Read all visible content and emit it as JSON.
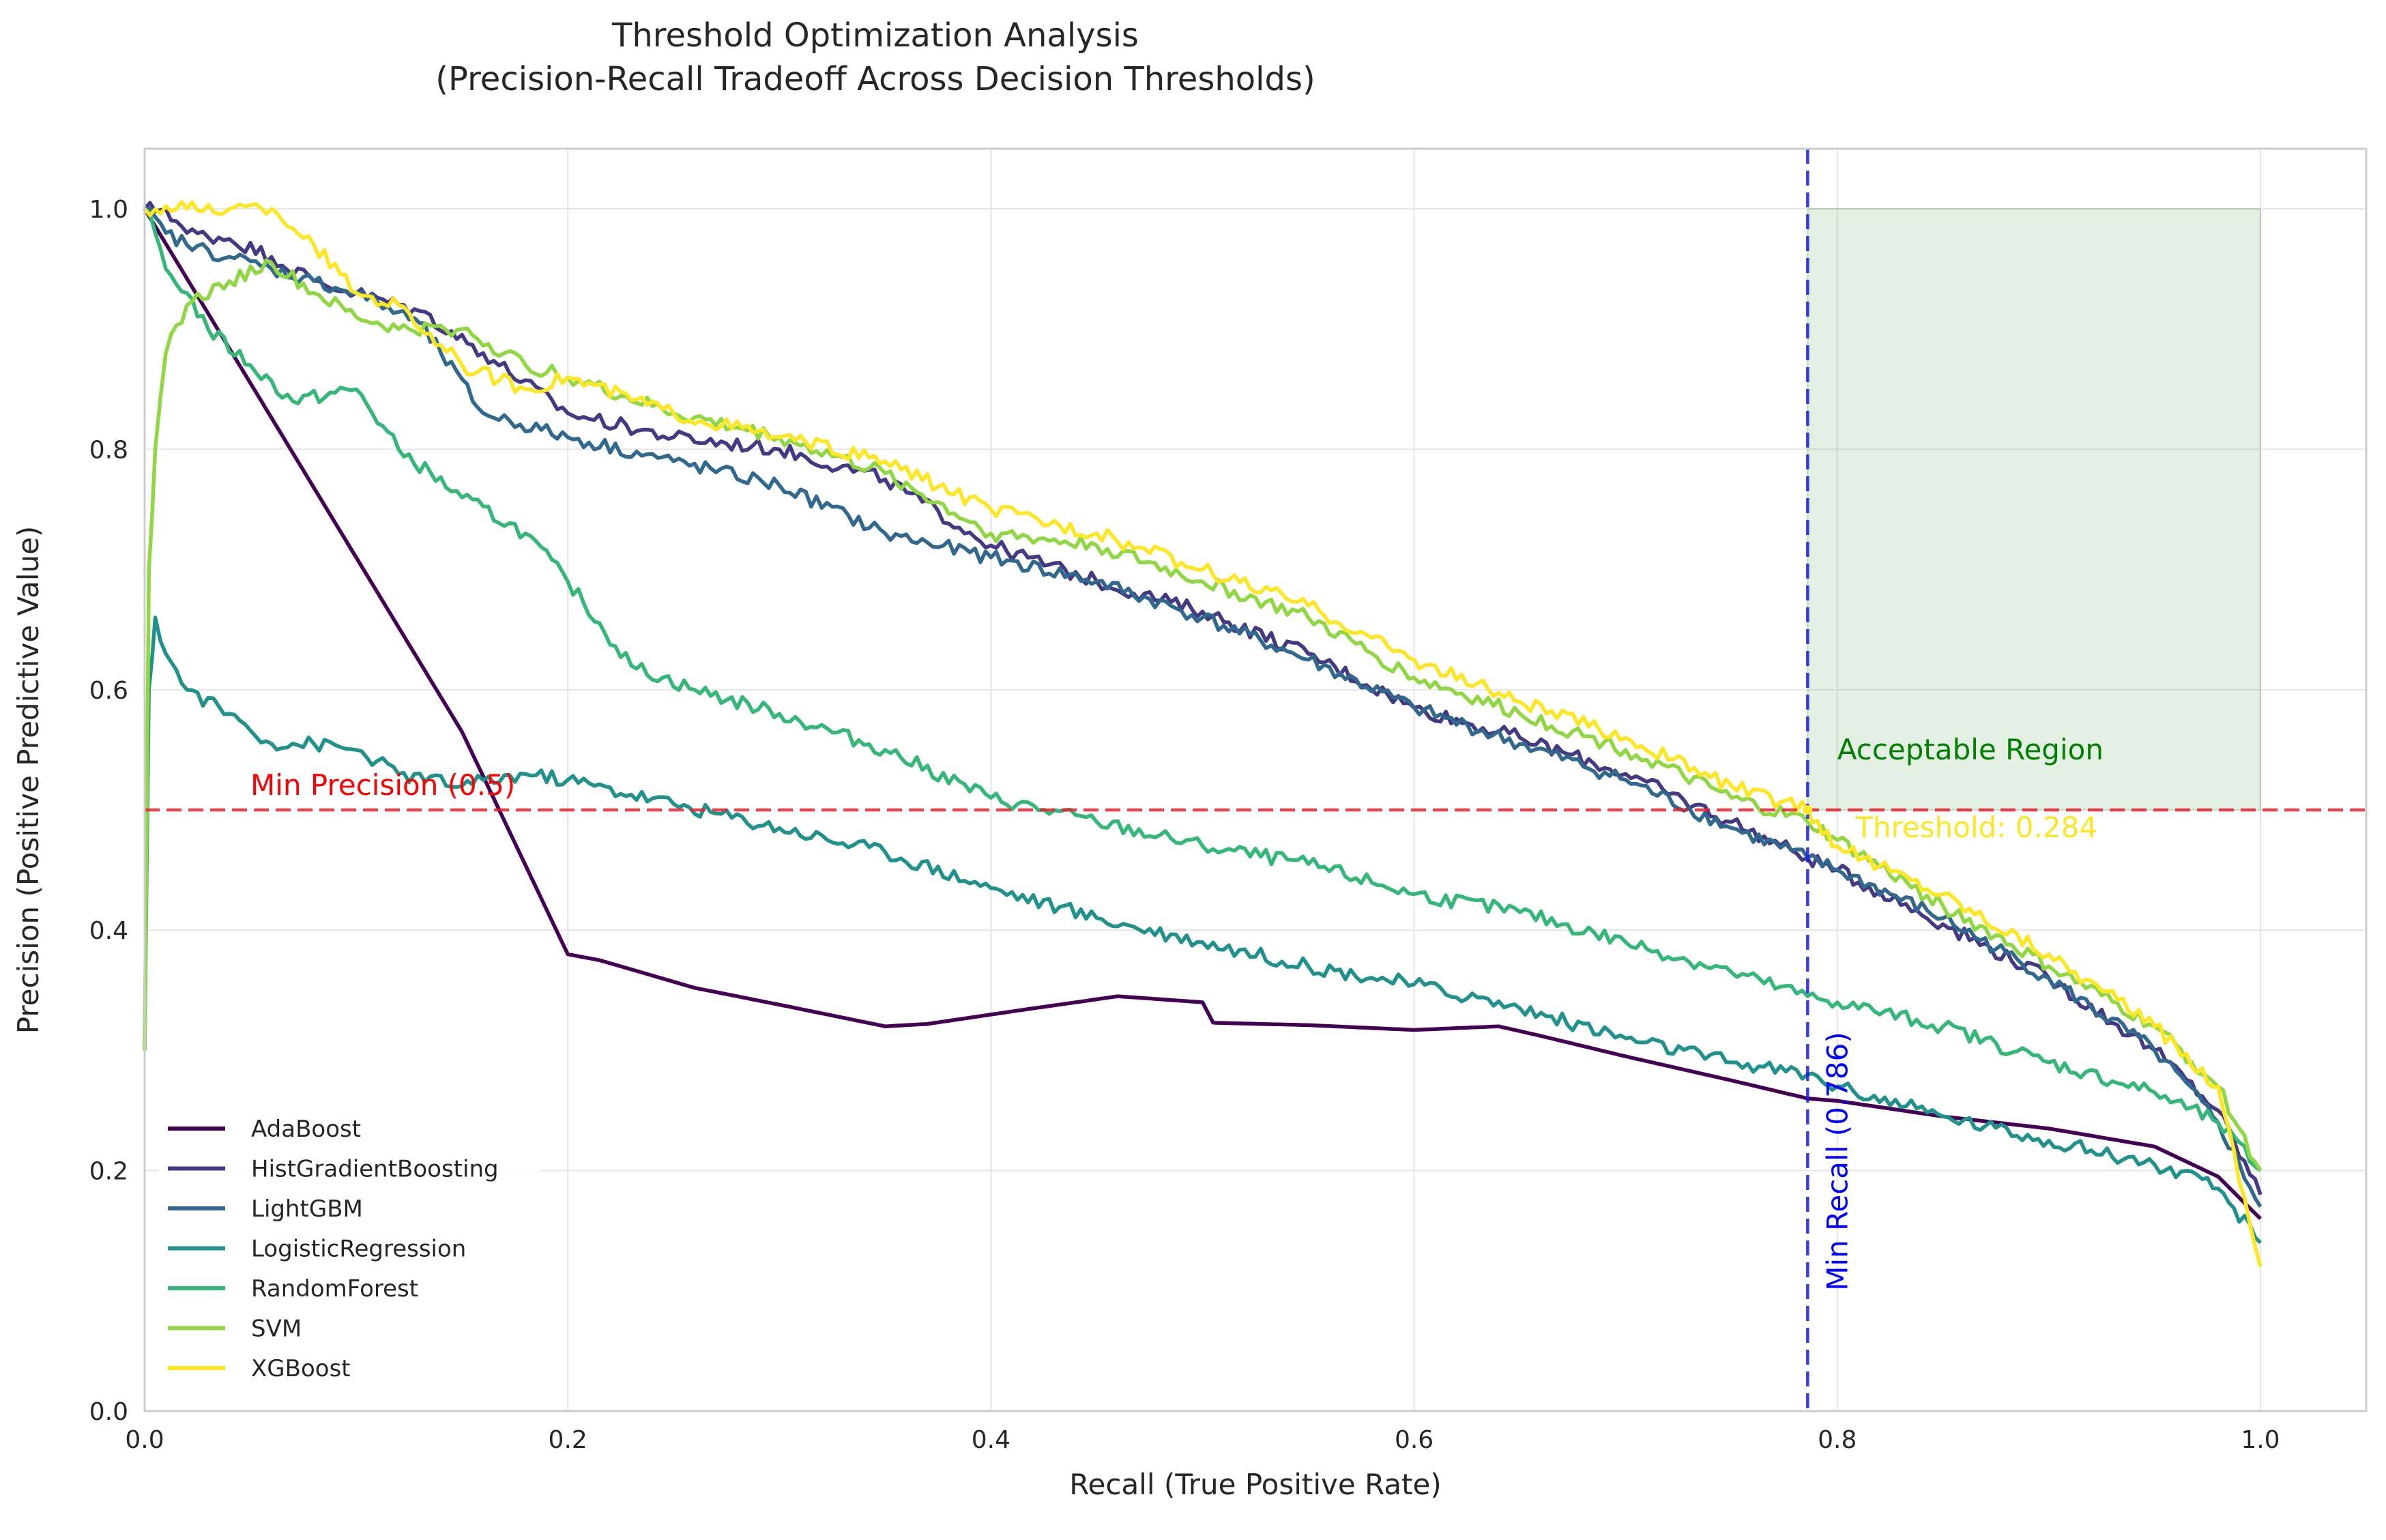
{
  "chart_data": {
    "type": "line",
    "title": "Threshold Optimization Analysis",
    "subtitle": "(Precision-Recall Tradeoff Across Decision Thresholds)",
    "xlabel": "Recall (True Positive Rate)",
    "ylabel": "Precision (Positive Predictive Value)",
    "xlim": [
      0.0,
      1.05
    ],
    "ylim": [
      0.0,
      1.05
    ],
    "xticks": [
      "0.0",
      "0.2",
      "0.4",
      "0.6",
      "0.8",
      "1.0"
    ],
    "xtick_values": [
      0.0,
      0.2,
      0.4,
      0.6,
      0.8,
      1.0
    ],
    "yticks": [
      "0.0",
      "0.2",
      "0.4",
      "0.6",
      "0.8",
      "1.0"
    ],
    "ytick_values": [
      0.0,
      0.2,
      0.4,
      0.6,
      0.8,
      1.0
    ],
    "grid": true,
    "legend_position": "lower-left",
    "colors": {
      "AdaBoost": "#440154",
      "HistGradientBoosting": "#443983",
      "LightGBM": "#31688e",
      "LogisticRegression": "#21918c",
      "RandomForest": "#35b779",
      "SVM": "#90d743",
      "XGBoost": "#fde725",
      "min_precision": "#e8202a",
      "min_recall": "#1a1ae6",
      "acceptable_region": "#2e8b2e"
    },
    "series": [
      {
        "name": "AdaBoost",
        "x": [
          0.0,
          0.05,
          0.1,
          0.15,
          0.2,
          0.215,
          0.26,
          0.3,
          0.35,
          0.37,
          0.42,
          0.46,
          0.5,
          0.505,
          0.55,
          0.6,
          0.64,
          0.66,
          0.7,
          0.75,
          0.786,
          0.8,
          0.85,
          0.9,
          0.95,
          0.98,
          1.0
        ],
        "y": [
          1.0,
          0.855,
          0.71,
          0.565,
          0.38,
          0.375,
          0.352,
          0.338,
          0.32,
          0.322,
          0.335,
          0.345,
          0.34,
          0.323,
          0.321,
          0.317,
          0.32,
          0.312,
          0.295,
          0.275,
          0.26,
          0.258,
          0.245,
          0.235,
          0.22,
          0.195,
          0.16
        ]
      },
      {
        "name": "HistGradientBoosting",
        "x": [
          0.0,
          0.01,
          0.02,
          0.04,
          0.06,
          0.08,
          0.1,
          0.13,
          0.16,
          0.2,
          0.25,
          0.3,
          0.35,
          0.4,
          0.45,
          0.5,
          0.55,
          0.6,
          0.65,
          0.7,
          0.75,
          0.786,
          0.8,
          0.85,
          0.9,
          0.95,
          0.98,
          1.0
        ],
        "y": [
          1.0,
          1.0,
          0.98,
          0.975,
          0.96,
          0.94,
          0.93,
          0.915,
          0.88,
          0.83,
          0.81,
          0.8,
          0.775,
          0.72,
          0.69,
          0.665,
          0.63,
          0.585,
          0.56,
          0.53,
          0.49,
          0.46,
          0.45,
          0.405,
          0.36,
          0.3,
          0.25,
          0.18
        ]
      },
      {
        "name": "LightGBM",
        "x": [
          0.0,
          0.01,
          0.02,
          0.04,
          0.06,
          0.08,
          0.1,
          0.13,
          0.16,
          0.2,
          0.25,
          0.3,
          0.35,
          0.4,
          0.45,
          0.5,
          0.55,
          0.6,
          0.65,
          0.7,
          0.75,
          0.786,
          0.8,
          0.85,
          0.9,
          0.95,
          0.98,
          1.0
        ],
        "y": [
          1.0,
          0.98,
          0.97,
          0.96,
          0.95,
          0.94,
          0.93,
          0.905,
          0.83,
          0.81,
          0.79,
          0.77,
          0.73,
          0.71,
          0.69,
          0.66,
          0.625,
          0.585,
          0.555,
          0.525,
          0.485,
          0.46,
          0.45,
          0.41,
          0.36,
          0.3,
          0.24,
          0.17
        ]
      },
      {
        "name": "LogisticRegression",
        "x": [
          0.0,
          0.002,
          0.005,
          0.01,
          0.02,
          0.04,
          0.06,
          0.08,
          0.1,
          0.12,
          0.15,
          0.18,
          0.2,
          0.25,
          0.3,
          0.35,
          0.4,
          0.45,
          0.5,
          0.55,
          0.6,
          0.65,
          0.7,
          0.75,
          0.786,
          0.8,
          0.85,
          0.9,
          0.95,
          0.98,
          1.0
        ],
        "y": [
          0.3,
          0.6,
          0.66,
          0.63,
          0.6,
          0.58,
          0.555,
          0.555,
          0.55,
          0.53,
          0.52,
          0.53,
          0.525,
          0.505,
          0.485,
          0.465,
          0.435,
          0.41,
          0.39,
          0.37,
          0.355,
          0.335,
          0.31,
          0.29,
          0.28,
          0.27,
          0.245,
          0.225,
          0.205,
          0.185,
          0.14
        ]
      },
      {
        "name": "RandomForest",
        "x": [
          0.0,
          0.005,
          0.01,
          0.02,
          0.03,
          0.05,
          0.07,
          0.1,
          0.12,
          0.15,
          0.18,
          0.2,
          0.23,
          0.26,
          0.3,
          0.35,
          0.4,
          0.45,
          0.5,
          0.55,
          0.6,
          0.65,
          0.7,
          0.75,
          0.786,
          0.8,
          0.85,
          0.9,
          0.95,
          0.98,
          1.0
        ],
        "y": [
          1.0,
          0.98,
          0.95,
          0.93,
          0.9,
          0.87,
          0.84,
          0.85,
          0.8,
          0.76,
          0.73,
          0.69,
          0.62,
          0.6,
          0.58,
          0.55,
          0.51,
          0.49,
          0.47,
          0.455,
          0.43,
          0.415,
          0.39,
          0.365,
          0.345,
          0.34,
          0.32,
          0.29,
          0.265,
          0.24,
          0.2
        ]
      },
      {
        "name": "SVM",
        "x": [
          0.0,
          0.002,
          0.005,
          0.01,
          0.02,
          0.04,
          0.06,
          0.08,
          0.1,
          0.12,
          0.15,
          0.18,
          0.2,
          0.25,
          0.3,
          0.35,
          0.4,
          0.45,
          0.5,
          0.55,
          0.6,
          0.65,
          0.7,
          0.75,
          0.786,
          0.8,
          0.85,
          0.9,
          0.95,
          0.98,
          1.0
        ],
        "y": [
          0.3,
          0.7,
          0.8,
          0.88,
          0.92,
          0.94,
          0.955,
          0.93,
          0.91,
          0.9,
          0.9,
          0.87,
          0.86,
          0.83,
          0.81,
          0.78,
          0.73,
          0.72,
          0.69,
          0.66,
          0.61,
          0.58,
          0.55,
          0.51,
          0.49,
          0.475,
          0.42,
          0.37,
          0.32,
          0.27,
          0.2
        ]
      },
      {
        "name": "XGBoost",
        "x": [
          0.0,
          0.02,
          0.04,
          0.06,
          0.08,
          0.1,
          0.12,
          0.15,
          0.18,
          0.2,
          0.25,
          0.3,
          0.35,
          0.4,
          0.45,
          0.5,
          0.55,
          0.6,
          0.65,
          0.7,
          0.75,
          0.786,
          0.8,
          0.85,
          0.9,
          0.95,
          0.98,
          1.0
        ],
        "y": [
          1.0,
          1.0,
          1.0,
          1.0,
          0.97,
          0.93,
          0.92,
          0.87,
          0.85,
          0.86,
          0.83,
          0.81,
          0.79,
          0.75,
          0.73,
          0.7,
          0.67,
          0.625,
          0.59,
          0.56,
          0.52,
          0.5,
          0.47,
          0.43,
          0.38,
          0.32,
          0.27,
          0.12
        ]
      }
    ],
    "reference_lines": {
      "min_precision": {
        "y": 0.5,
        "label": "Min Precision (0.5)"
      },
      "min_recall": {
        "x": 0.786,
        "label": "Min Recall (0.786)"
      }
    },
    "acceptable_region": {
      "x": [
        0.786,
        1.0
      ],
      "y": [
        0.5,
        1.0
      ],
      "label": "Acceptable Region"
    },
    "threshold_annotation": {
      "x": 0.786,
      "y": 0.5,
      "label": "Threshold: 0.284"
    }
  }
}
